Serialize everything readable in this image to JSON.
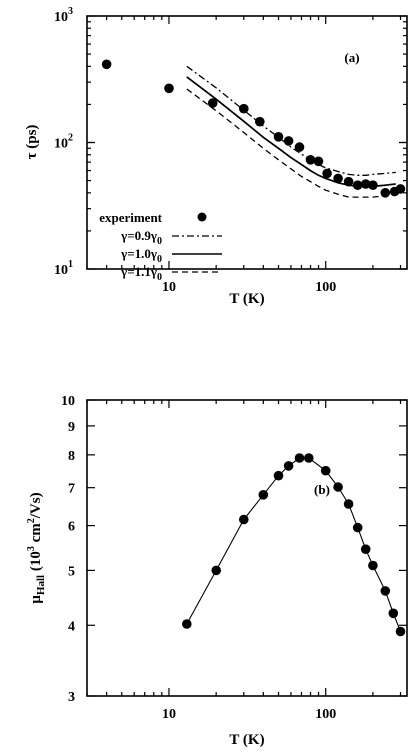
{
  "chart_data": [
    {
      "type": "line",
      "panel_label": "(a)",
      "xlabel": "T (K)",
      "ylabel": "τ (ps)",
      "xscale": "log",
      "yscale": "log",
      "xlim": [
        3,
        330
      ],
      "ylim": [
        10,
        1000
      ],
      "x_ticks": [
        {
          "value": 10,
          "label": "10"
        },
        {
          "value": 100,
          "label": "100"
        }
      ],
      "y_ticks": [
        {
          "value": 10,
          "base": "10",
          "exp": "1"
        },
        {
          "value": 100,
          "base": "10",
          "exp": "2"
        },
        {
          "value": 1000,
          "base": "10",
          "exp": "3"
        }
      ],
      "legend_position": "bottom-left",
      "series": [
        {
          "name": "experiment",
          "style": "markers",
          "points": [
            [
              4,
              415
            ],
            [
              10,
              268
            ],
            [
              19,
              205
            ],
            [
              30,
              185
            ],
            [
              38,
              146
            ],
            [
              50,
              111
            ],
            [
              58,
              103
            ],
            [
              68,
              92
            ],
            [
              80,
              73
            ],
            [
              90,
              71
            ],
            [
              102,
              57
            ],
            [
              120,
              52
            ],
            [
              140,
              49
            ],
            [
              160,
              46
            ],
            [
              180,
              47
            ],
            [
              200,
              46
            ],
            [
              240,
              40
            ],
            [
              275,
              41
            ],
            [
              300,
              43
            ]
          ]
        },
        {
          "name": "γ=0.9γ0",
          "style": "dash-dot",
          "points": [
            [
              13,
              400
            ],
            [
              20,
              270
            ],
            [
              30,
              180
            ],
            [
              40,
              135
            ],
            [
              50,
              110
            ],
            [
              60,
              92
            ],
            [
              70,
              81
            ],
            [
              80,
              73
            ],
            [
              90,
              67
            ],
            [
              100,
              63
            ],
            [
              120,
              59
            ],
            [
              140,
              56
            ],
            [
              160,
              55
            ],
            [
              180,
              55
            ],
            [
              200,
              56
            ],
            [
              240,
              57
            ],
            [
              280,
              58
            ]
          ]
        },
        {
          "name": "γ=1.0γ0",
          "style": "solid",
          "points": [
            [
              13,
              330
            ],
            [
              20,
              220
            ],
            [
              30,
              147
            ],
            [
              40,
              110
            ],
            [
              50,
              90
            ],
            [
              60,
              76
            ],
            [
              70,
              67
            ],
            [
              80,
              60
            ],
            [
              90,
              55
            ],
            [
              100,
              52
            ],
            [
              120,
              48
            ],
            [
              140,
              46
            ],
            [
              160,
              45
            ],
            [
              180,
              45
            ],
            [
              200,
              45
            ],
            [
              240,
              46
            ],
            [
              280,
              47
            ]
          ]
        },
        {
          "name": "γ=1.1γ0",
          "style": "dashed",
          "points": [
            [
              13,
              265
            ],
            [
              20,
              178
            ],
            [
              30,
              120
            ],
            [
              40,
              90
            ],
            [
              50,
              73
            ],
            [
              60,
              62
            ],
            [
              70,
              54
            ],
            [
              80,
              49
            ],
            [
              90,
              45
            ],
            [
              100,
              42
            ],
            [
              120,
              39
            ],
            [
              140,
              37
            ],
            [
              160,
              37
            ],
            [
              180,
              37
            ],
            [
              200,
              37
            ],
            [
              240,
              38
            ],
            [
              280,
              39
            ]
          ]
        }
      ]
    },
    {
      "type": "line",
      "panel_label": "(b)",
      "xlabel": "T (K)",
      "ylabel": "μHall (103 cm2/Vs)",
      "ylabel_parts": {
        "mu": "μ",
        "sub": "Hall",
        "a": " (10",
        "sup1": "3",
        "b": " cm",
        "sup2": "2",
        "c": "/Vs)"
      },
      "xscale": "log",
      "yscale": "log",
      "xlim": [
        3,
        330
      ],
      "ylim": [
        3,
        10
      ],
      "x_ticks": [
        {
          "value": 10,
          "label": "10"
        },
        {
          "value": 100,
          "label": "100"
        }
      ],
      "y_ticks": [
        {
          "value": 3,
          "label": "3"
        },
        {
          "value": 4,
          "label": "4"
        },
        {
          "value": 5,
          "label": "5"
        },
        {
          "value": 6,
          "label": "6"
        },
        {
          "value": 7,
          "label": "7"
        },
        {
          "value": 8,
          "label": "8"
        },
        {
          "value": 9,
          "label": "9"
        },
        {
          "value": 10,
          "label": "10"
        }
      ],
      "series": [
        {
          "style": "line-markers",
          "points": [
            [
              13,
              4.02
            ],
            [
              20,
              5.0
            ],
            [
              30,
              6.15
            ],
            [
              40,
              6.8
            ],
            [
              50,
              7.35
            ],
            [
              58,
              7.65
            ],
            [
              68,
              7.9
            ],
            [
              78,
              7.9
            ],
            [
              100,
              7.5
            ],
            [
              120,
              7.02
            ],
            [
              140,
              6.55
            ],
            [
              160,
              5.95
            ],
            [
              180,
              5.45
            ],
            [
              200,
              5.1
            ],
            [
              240,
              4.6
            ],
            [
              270,
              4.2
            ],
            [
              300,
              3.9
            ]
          ]
        }
      ]
    }
  ]
}
